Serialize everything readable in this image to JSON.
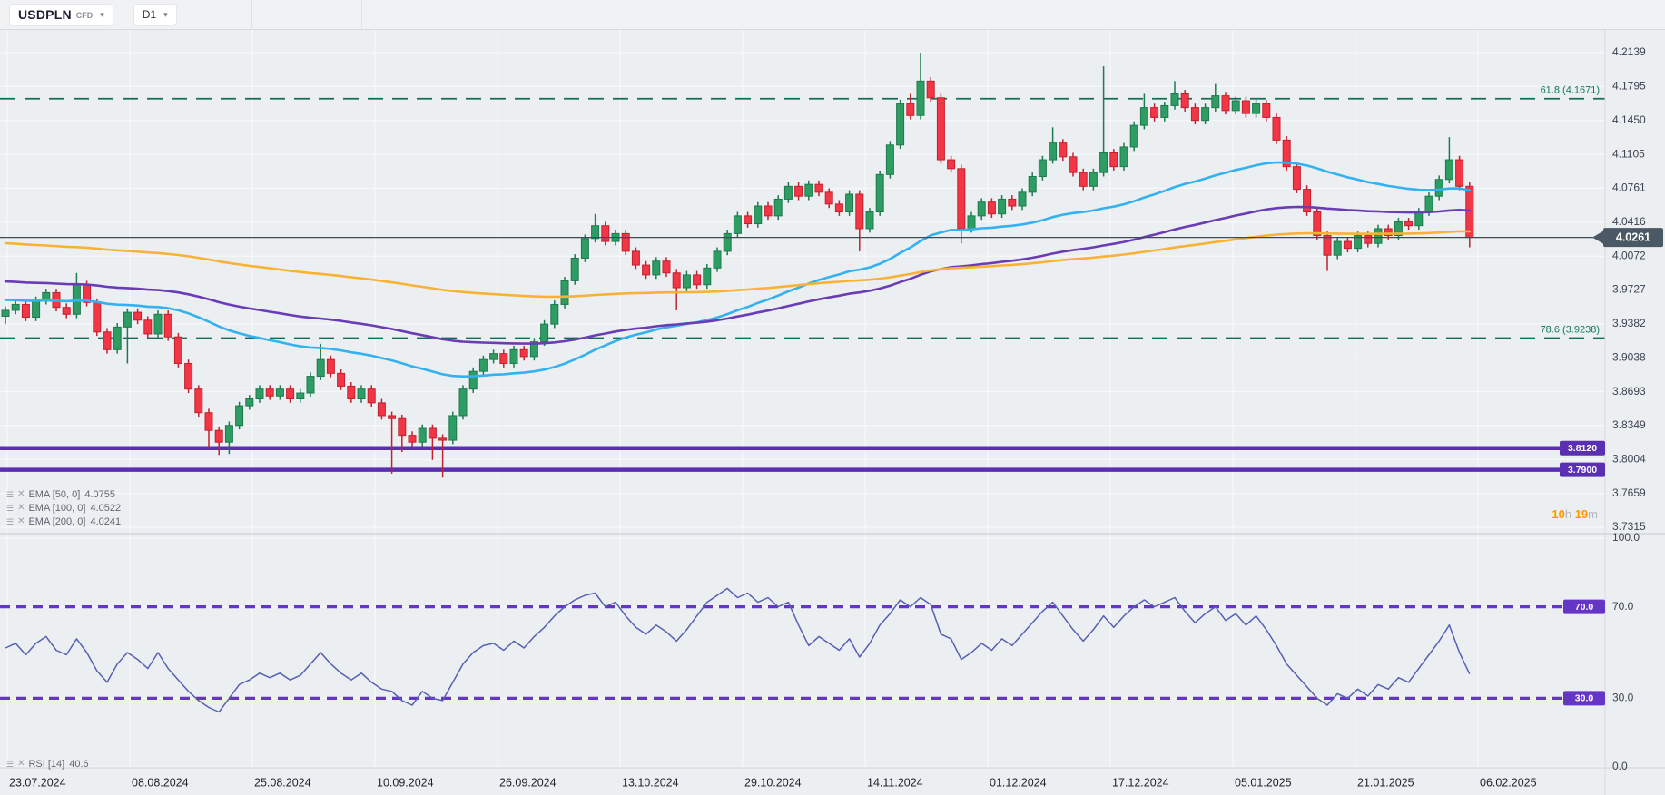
{
  "toolbar": {
    "symbol": "USDPLN",
    "symbol_type": "CFD",
    "interval": "D1",
    "caret": "▾"
  },
  "colors": {
    "background": "#eceff2",
    "grid": "#f8fafb",
    "candle_up": "#2e9d63",
    "candle_up_border": "#1f7a4d",
    "candle_down": "#f23645",
    "candle_down_border": "#c1212f",
    "ema50": "#33b1f0",
    "ema100": "#6a3cb5",
    "ema200": "#f9b233",
    "fib": "#0f6e54",
    "support": "#5a2fb2",
    "rsi_line": "#5560b4",
    "rsi_level": "#6535c6",
    "last_price": "#3e4a54",
    "last_price_badge": "#4a5965",
    "separator": "#d8dbdf"
  },
  "price_axis": {
    "labels": [
      "4.2139",
      "4.1795",
      "4.1450",
      "4.1105",
      "4.0761",
      "4.0416",
      "4.0072",
      "3.9727",
      "3.9382",
      "3.9038",
      "3.8693",
      "3.8349",
      "3.8004",
      "3.7659",
      "3.7315"
    ]
  },
  "rsi_axis": {
    "labels": [
      {
        "label": "100.0",
        "value": 100
      },
      {
        "label": "70.0",
        "value": 70
      },
      {
        "label": "30.0",
        "value": 30
      },
      {
        "label": "0.0",
        "value": 0
      }
    ]
  },
  "time_axis": {
    "labels": [
      "23.07.2024",
      "08.08.2024",
      "25.08.2024",
      "10.09.2024",
      "26.09.2024",
      "13.10.2024",
      "29.10.2024",
      "14.11.2024",
      "01.12.2024",
      "17.12.2024",
      "05.01.2025",
      "21.01.2025",
      "06.02.2025"
    ]
  },
  "last_price": {
    "label": "4.0261",
    "value": 4.0261
  },
  "countdown": {
    "hours": "10",
    "hours_unit": "h",
    "minutes": "19",
    "minutes_unit": "m"
  },
  "legends": {
    "emas": [
      {
        "label": "EMA  [50, 0]",
        "value": "4.0755"
      },
      {
        "label": "EMA  [100, 0]",
        "value": "4.0522"
      },
      {
        "label": "EMA  [200, 0]",
        "value": "4.0241"
      }
    ],
    "rsi": {
      "label": "RSI  [14]",
      "value": "40.6"
    },
    "menu_icon": "☰",
    "close_icon": "✕"
  },
  "chart_data": {
    "type": "candlestick",
    "symbol": "USDPLN CFD",
    "interval": "D1",
    "x_range": [
      "23.07.2024",
      "06.02.2025"
    ],
    "y_range_price": [
      3.7315,
      4.2139
    ],
    "y_range_rsi": [
      0,
      100
    ],
    "grid": true,
    "fib_levels": [
      {
        "label": "61.8 (4.1671)",
        "value": 4.1671
      },
      {
        "label": "78.6 (3.9238)",
        "value": 3.9238
      }
    ],
    "support_levels": [
      {
        "label": "3.8120",
        "value": 3.812
      },
      {
        "label": "3.7900",
        "value": 3.79
      }
    ],
    "rsi_levels": [
      {
        "label": "70.0",
        "value": 70
      },
      {
        "label": "30.0",
        "value": 30
      }
    ],
    "emas": [
      {
        "period": 50,
        "seed": 3.963,
        "last": 4.0755,
        "color_key": "ema50"
      },
      {
        "period": 100,
        "seed": 3.982,
        "last": 4.0522,
        "color_key": "ema100"
      },
      {
        "period": 200,
        "seed": 4.021,
        "last": 4.0241,
        "color_key": "ema200"
      }
    ],
    "candles": {
      "wick_default": 0.004,
      "open": [
        3.946,
        3.952,
        3.958,
        3.945,
        3.962,
        3.97,
        3.955,
        3.948,
        3.978,
        3.96,
        3.93,
        3.912,
        3.935,
        3.95,
        3.942,
        3.928,
        3.948,
        3.925,
        3.898,
        3.872,
        3.848,
        3.83,
        3.818,
        3.835,
        3.855,
        3.862,
        3.872,
        3.865,
        3.872,
        3.862,
        3.868,
        3.885,
        3.902,
        3.888,
        3.875,
        3.862,
        3.872,
        3.858,
        3.845,
        3.842,
        3.825,
        3.818,
        3.832,
        3.822,
        3.82,
        3.845,
        3.872,
        3.89,
        3.902,
        3.908,
        3.898,
        3.912,
        3.905,
        3.92,
        3.938,
        3.958,
        3.982,
        4.005,
        4.025,
        4.038,
        4.022,
        4.03,
        4.012,
        3.998,
        3.988,
        4.002,
        3.99,
        3.975,
        3.988,
        3.978,
        3.995,
        4.012,
        4.03,
        4.048,
        4.04,
        4.058,
        4.048,
        4.065,
        4.078,
        4.068,
        4.08,
        4.072,
        4.06,
        4.052,
        4.07,
        4.035,
        4.052,
        4.09,
        4.12,
        4.162,
        4.15,
        4.185,
        4.168,
        4.105,
        4.096,
        4.035,
        4.048,
        4.062,
        4.05,
        4.065,
        4.058,
        4.072,
        4.088,
        4.105,
        4.122,
        4.108,
        4.092,
        4.078,
        4.092,
        4.112,
        4.098,
        4.118,
        4.14,
        4.158,
        4.148,
        4.16,
        4.172,
        4.158,
        4.145,
        4.158,
        4.17,
        4.155,
        4.165,
        4.152,
        4.162,
        4.148,
        4.125,
        4.098,
        4.075,
        4.052,
        4.028,
        4.008,
        4.022,
        4.015,
        4.028,
        4.02,
        4.035,
        4.028,
        4.042,
        4.038,
        4.052,
        4.068,
        4.085,
        4.105,
        4.078
      ],
      "close": [
        3.952,
        3.958,
        3.945,
        3.962,
        3.97,
        3.955,
        3.948,
        3.978,
        3.96,
        3.93,
        3.912,
        3.935,
        3.95,
        3.942,
        3.928,
        3.948,
        3.925,
        3.898,
        3.872,
        3.848,
        3.83,
        3.818,
        3.835,
        3.855,
        3.862,
        3.872,
        3.865,
        3.872,
        3.862,
        3.868,
        3.885,
        3.902,
        3.888,
        3.875,
        3.862,
        3.872,
        3.858,
        3.845,
        3.842,
        3.825,
        3.818,
        3.832,
        3.822,
        3.82,
        3.845,
        3.872,
        3.89,
        3.902,
        3.908,
        3.898,
        3.912,
        3.905,
        3.92,
        3.938,
        3.958,
        3.982,
        4.005,
        4.025,
        4.038,
        4.022,
        4.03,
        4.012,
        3.998,
        3.988,
        4.002,
        3.99,
        3.975,
        3.988,
        3.978,
        3.995,
        4.012,
        4.03,
        4.048,
        4.04,
        4.058,
        4.048,
        4.065,
        4.078,
        4.068,
        4.08,
        4.072,
        4.06,
        4.052,
        4.07,
        4.035,
        4.052,
        4.09,
        4.12,
        4.162,
        4.15,
        4.185,
        4.168,
        4.105,
        4.096,
        4.035,
        4.048,
        4.062,
        4.05,
        4.065,
        4.058,
        4.072,
        4.088,
        4.105,
        4.122,
        4.108,
        4.092,
        4.078,
        4.092,
        4.112,
        4.098,
        4.118,
        4.14,
        4.158,
        4.148,
        4.16,
        4.172,
        4.158,
        4.145,
        4.158,
        4.17,
        4.155,
        4.165,
        4.152,
        4.162,
        4.148,
        4.125,
        4.098,
        4.075,
        4.052,
        4.028,
        4.008,
        4.022,
        4.015,
        4.028,
        4.02,
        4.035,
        4.028,
        4.042,
        4.038,
        4.052,
        4.068,
        4.085,
        4.105,
        4.078,
        4.0261
      ],
      "high_overrides": {
        "7": 3.99,
        "31": 3.918,
        "58": 4.05,
        "89": 4.172,
        "90": 4.2139,
        "103": 4.138,
        "108": 4.2,
        "112": 4.172,
        "115": 4.185,
        "119": 4.182,
        "142": 4.128
      },
      "low_overrides": {
        "0": 3.938,
        "12": 3.898,
        "20": 3.812,
        "21": 3.805,
        "22": 3.806,
        "38": 3.786,
        "39": 3.808,
        "42": 3.8,
        "43": 3.782,
        "66": 3.952,
        "84": 4.012,
        "94": 4.02,
        "130": 3.992,
        "144": 4.016
      }
    },
    "rsi": {
      "period": 14,
      "last": 40.6,
      "values": [
        52,
        54,
        49,
        54,
        57,
        51,
        49,
        56,
        50,
        42,
        37,
        45,
        50,
        47,
        43,
        50,
        43,
        38,
        33,
        29,
        26,
        24,
        30,
        36,
        38,
        41,
        39,
        41,
        38,
        40,
        45,
        50,
        45,
        41,
        38,
        41,
        37,
        34,
        33,
        29,
        27,
        33,
        30,
        29,
        37,
        45,
        50,
        53,
        54,
        51,
        55,
        52,
        57,
        61,
        66,
        70,
        73,
        75,
        76,
        70,
        72,
        66,
        61,
        58,
        62,
        59,
        55,
        60,
        66,
        72,
        75,
        78,
        74,
        76,
        72,
        74,
        70,
        72,
        62,
        53,
        57,
        54,
        51,
        56,
        48,
        54,
        62,
        67,
        73,
        70,
        74,
        71,
        58,
        56,
        47,
        50,
        54,
        51,
        56,
        53,
        58,
        63,
        68,
        72,
        66,
        60,
        55,
        60,
        66,
        61,
        66,
        70,
        73,
        70,
        72,
        74,
        68,
        63,
        67,
        70,
        64,
        67,
        62,
        66,
        60,
        53,
        45,
        40,
        35,
        30,
        27,
        32,
        30,
        34,
        31,
        36,
        34,
        39,
        37,
        43,
        49,
        55,
        62,
        50,
        40.6
      ]
    }
  }
}
